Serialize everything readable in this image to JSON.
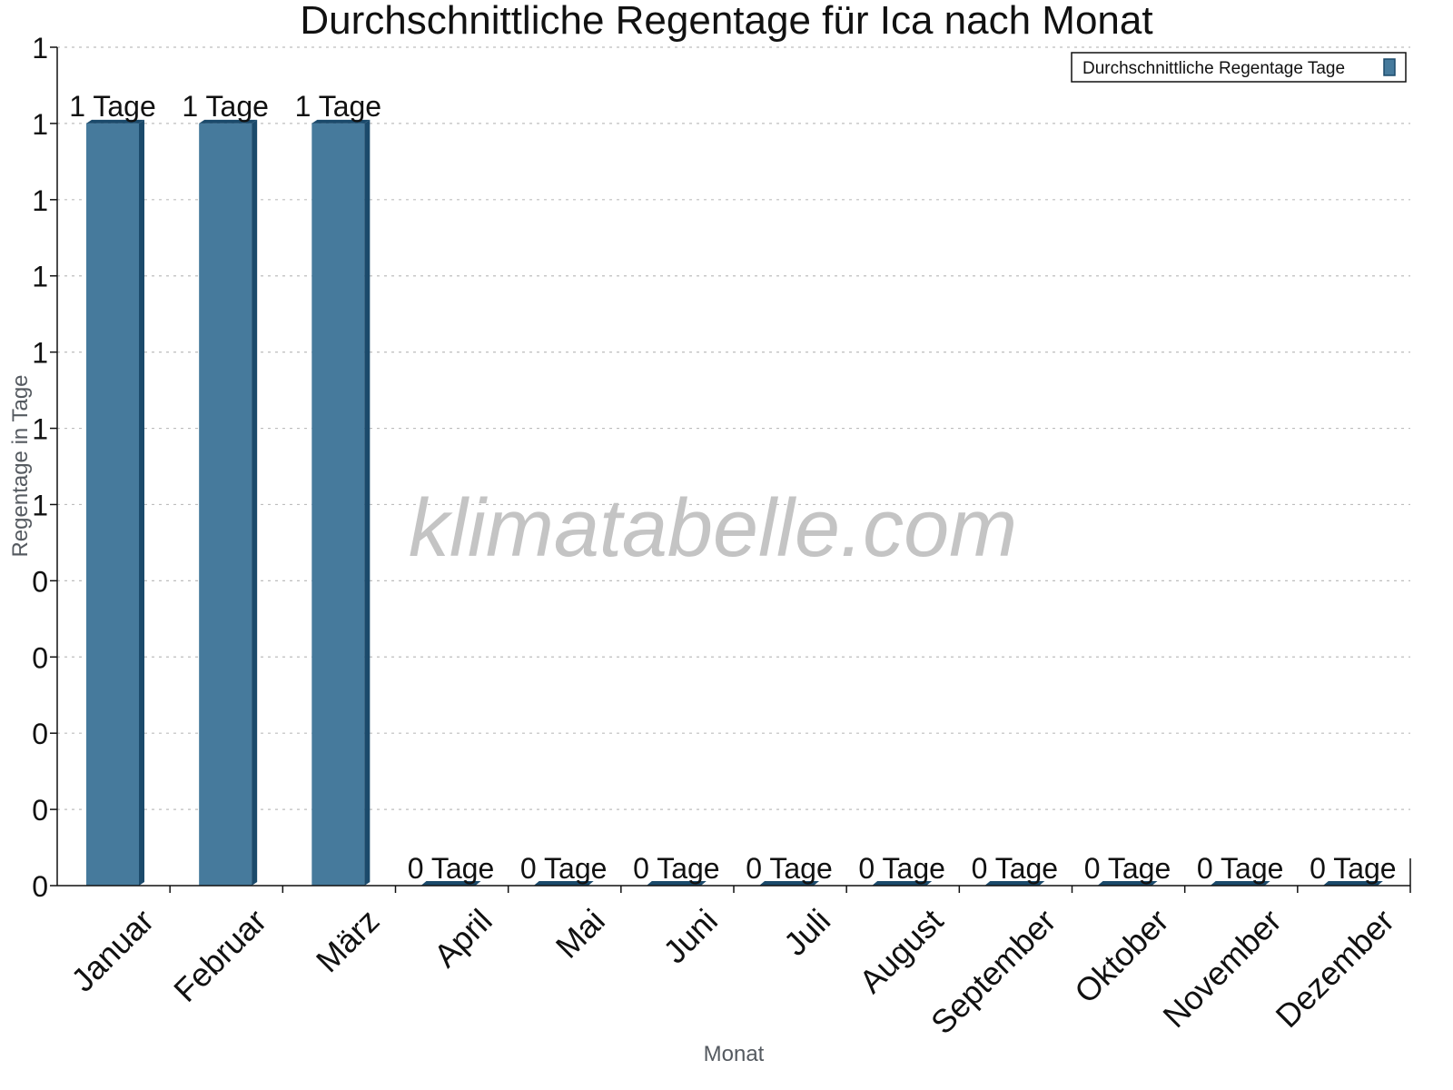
{
  "chart_data": {
    "type": "bar",
    "title": "Durchschnittliche Regentage für Ica nach Monat",
    "xlabel": "Monat",
    "ylabel": "Regentage in Tage",
    "categories": [
      "Januar",
      "Februar",
      "März",
      "April",
      "Mai",
      "Juni",
      "Juli",
      "August",
      "September",
      "Oktober",
      "November",
      "Dezember"
    ],
    "series": [
      {
        "name": "Durchschnittliche Regentage Tage",
        "color": "#467a9c",
        "side_color": "#1b4a6b",
        "values": [
          1,
          1,
          1,
          0,
          0,
          0,
          0,
          0,
          0,
          0,
          0,
          0
        ]
      }
    ],
    "data_labels": [
      "1 Tage",
      "1 Tage",
      "1 Tage",
      "0 Tage",
      "0 Tage",
      "0 Tage",
      "0 Tage",
      "0 Tage",
      "0 Tage",
      "0 Tage",
      "0 Tage",
      "0 Tage"
    ],
    "ylim": [
      0,
      1.1
    ],
    "ytick_values": [
      0,
      0.1,
      0.2,
      0.3,
      0.4,
      0.5,
      0.6,
      0.7,
      0.8,
      0.9,
      1.0,
      1.1
    ],
    "ytick_labels": [
      "0",
      "0",
      "0",
      "0",
      "0",
      "1",
      "1",
      "1",
      "1",
      "1",
      "1",
      "1"
    ],
    "grid": true,
    "legend_position": "top-right",
    "watermark": "klimatabelle.com"
  }
}
